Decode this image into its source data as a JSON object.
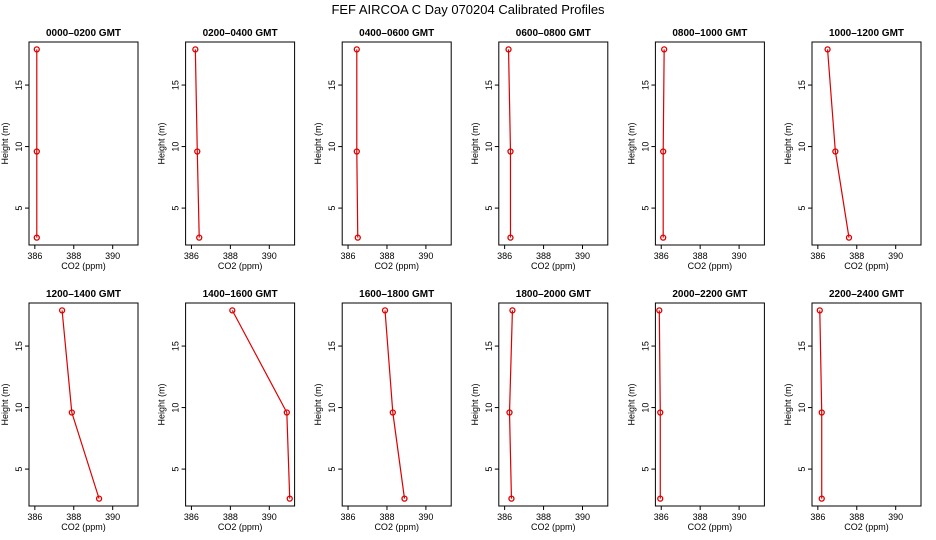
{
  "figure": {
    "title": "FEF AIRCOA C  Day 070204  Calibrated Profiles",
    "series_color": "#dd0000"
  },
  "chart_data": [
    {
      "type": "line",
      "title": "0000–0200 GMT",
      "xlabel": "CO2 (ppm)",
      "ylabel": "Height (m)",
      "xlim": [
        385.7,
        391.3
      ],
      "ylim": [
        2,
        18.5
      ],
      "xticks": [
        386,
        388,
        390
      ],
      "yticks": [
        5,
        10,
        15
      ],
      "points": [
        {
          "x": 386.1,
          "y": 17.9
        },
        {
          "x": 386.1,
          "y": 9.6
        },
        {
          "x": 386.1,
          "y": 2.6
        }
      ]
    },
    {
      "type": "line",
      "title": "0200–0400 GMT",
      "xlabel": "CO2 (ppm)",
      "ylabel": "Height (m)",
      "xlim": [
        385.7,
        391.3
      ],
      "ylim": [
        2,
        18.5
      ],
      "xticks": [
        386,
        388,
        390
      ],
      "yticks": [
        5,
        10,
        15
      ],
      "points": [
        {
          "x": 386.2,
          "y": 17.9
        },
        {
          "x": 386.3,
          "y": 9.6
        },
        {
          "x": 386.4,
          "y": 2.6
        }
      ]
    },
    {
      "type": "line",
      "title": "0400–0600 GMT",
      "xlabel": "CO2 (ppm)",
      "ylabel": "Height (m)",
      "xlim": [
        385.7,
        391.3
      ],
      "ylim": [
        2,
        18.5
      ],
      "xticks": [
        386,
        388,
        390
      ],
      "yticks": [
        5,
        10,
        15
      ],
      "points": [
        {
          "x": 386.45,
          "y": 17.9
        },
        {
          "x": 386.45,
          "y": 9.6
        },
        {
          "x": 386.5,
          "y": 2.6
        }
      ]
    },
    {
      "type": "line",
      "title": "0600–0800 GMT",
      "xlabel": "CO2 (ppm)",
      "ylabel": "Height (m)",
      "xlim": [
        385.7,
        391.3
      ],
      "ylim": [
        2,
        18.5
      ],
      "xticks": [
        386,
        388,
        390
      ],
      "yticks": [
        5,
        10,
        15
      ],
      "points": [
        {
          "x": 386.2,
          "y": 17.9
        },
        {
          "x": 386.3,
          "y": 9.6
        },
        {
          "x": 386.3,
          "y": 2.6
        }
      ]
    },
    {
      "type": "line",
      "title": "0800–1000 GMT",
      "xlabel": "CO2 (ppm)",
      "ylabel": "Height (m)",
      "xlim": [
        385.7,
        391.3
      ],
      "ylim": [
        2,
        18.5
      ],
      "xticks": [
        386,
        388,
        390
      ],
      "yticks": [
        5,
        10,
        15
      ],
      "points": [
        {
          "x": 386.15,
          "y": 17.9
        },
        {
          "x": 386.1,
          "y": 9.6
        },
        {
          "x": 386.1,
          "y": 2.6
        }
      ]
    },
    {
      "type": "line",
      "title": "1000–1200 GMT",
      "xlabel": "CO2 (ppm)",
      "ylabel": "Height (m)",
      "xlim": [
        385.7,
        391.3
      ],
      "ylim": [
        2,
        18.5
      ],
      "xticks": [
        386,
        388,
        390
      ],
      "yticks": [
        5,
        10,
        15
      ],
      "points": [
        {
          "x": 386.5,
          "y": 17.9
        },
        {
          "x": 386.9,
          "y": 9.6
        },
        {
          "x": 387.6,
          "y": 2.6
        }
      ]
    },
    {
      "type": "line",
      "title": "1200–1400 GMT",
      "xlabel": "CO2 (ppm)",
      "ylabel": "Height (m)",
      "xlim": [
        385.7,
        391.3
      ],
      "ylim": [
        2,
        18.5
      ],
      "xticks": [
        386,
        388,
        390
      ],
      "yticks": [
        5,
        10,
        15
      ],
      "points": [
        {
          "x": 387.4,
          "y": 17.9
        },
        {
          "x": 387.9,
          "y": 9.6
        },
        {
          "x": 389.3,
          "y": 2.6
        }
      ]
    },
    {
      "type": "line",
      "title": "1400–1600 GMT",
      "xlabel": "CO2 (ppm)",
      "ylabel": "Height (m)",
      "xlim": [
        385.7,
        391.3
      ],
      "ylim": [
        2,
        18.5
      ],
      "xticks": [
        386,
        388,
        390
      ],
      "yticks": [
        5,
        10,
        15
      ],
      "points": [
        {
          "x": 388.1,
          "y": 17.9
        },
        {
          "x": 390.9,
          "y": 9.6
        },
        {
          "x": 391.05,
          "y": 2.6
        }
      ]
    },
    {
      "type": "line",
      "title": "1600–1800 GMT",
      "xlabel": "CO2 (ppm)",
      "ylabel": "Height (m)",
      "xlim": [
        385.7,
        391.3
      ],
      "ylim": [
        2,
        18.5
      ],
      "xticks": [
        386,
        388,
        390
      ],
      "yticks": [
        5,
        10,
        15
      ],
      "points": [
        {
          "x": 387.9,
          "y": 17.9
        },
        {
          "x": 388.3,
          "y": 9.6
        },
        {
          "x": 388.9,
          "y": 2.6
        }
      ]
    },
    {
      "type": "line",
      "title": "1800–2000 GMT",
      "xlabel": "CO2 (ppm)",
      "ylabel": "Height (m)",
      "xlim": [
        385.7,
        391.3
      ],
      "ylim": [
        2,
        18.5
      ],
      "xticks": [
        386,
        388,
        390
      ],
      "yticks": [
        5,
        10,
        15
      ],
      "points": [
        {
          "x": 386.4,
          "y": 17.9
        },
        {
          "x": 386.25,
          "y": 9.6
        },
        {
          "x": 386.35,
          "y": 2.6
        }
      ]
    },
    {
      "type": "line",
      "title": "2000–2200 GMT",
      "xlabel": "CO2 (ppm)",
      "ylabel": "Height (m)",
      "xlim": [
        385.7,
        391.3
      ],
      "ylim": [
        2,
        18.5
      ],
      "xticks": [
        386,
        388,
        390
      ],
      "yticks": [
        5,
        10,
        15
      ],
      "points": [
        {
          "x": 385.9,
          "y": 17.9
        },
        {
          "x": 385.95,
          "y": 9.6
        },
        {
          "x": 385.95,
          "y": 2.6
        }
      ]
    },
    {
      "type": "line",
      "title": "2200–2400 GMT",
      "xlabel": "CO2 (ppm)",
      "ylabel": "Height (m)",
      "xlim": [
        385.7,
        391.3
      ],
      "ylim": [
        2,
        18.5
      ],
      "xticks": [
        386,
        388,
        390
      ],
      "yticks": [
        5,
        10,
        15
      ],
      "points": [
        {
          "x": 386.1,
          "y": 17.9
        },
        {
          "x": 386.2,
          "y": 9.6
        },
        {
          "x": 386.2,
          "y": 2.6
        }
      ]
    }
  ]
}
